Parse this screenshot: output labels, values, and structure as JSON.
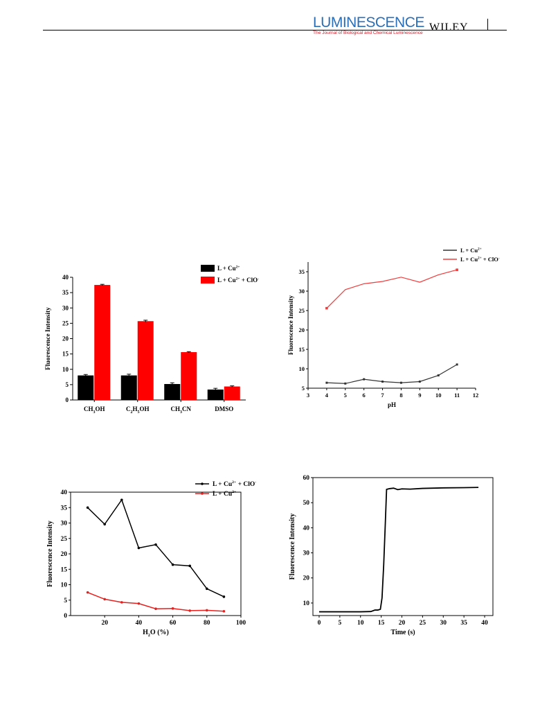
{
  "header": {
    "journal_name": "LUMINESCENCE",
    "journal_subtitle": "The Journal of Biological and Chemical Luminescence",
    "publisher": "WILEY",
    "colors": {
      "journal": "#2a6fb7",
      "subtitle": "#c41e2a"
    }
  },
  "chart_data": [
    {
      "type": "bar",
      "categories": [
        [
          "CH",
          "3",
          "OH"
        ],
        [
          "C",
          "2",
          "H",
          "5",
          "OH"
        ],
        [
          "CH",
          "3",
          "CN"
        ],
        [
          "DMSO"
        ]
      ],
      "series": [
        {
          "name": "L + Cu2+",
          "color": "#000000",
          "values": [
            8.0,
            8.0,
            5.2,
            3.4
          ],
          "errors": [
            0.3,
            0.4,
            0.4,
            0.4
          ]
        },
        {
          "name": "L + Cu2+ + ClO-",
          "color": "#ff0000",
          "values": [
            37.5,
            25.7,
            15.6,
            4.4
          ],
          "errors": [
            0.2,
            0.3,
            0.15,
            0.2
          ]
        }
      ],
      "xlabel": "",
      "ylabel": "Fluorescence Intensity",
      "ylim": [
        0,
        40
      ],
      "yticks": [
        0,
        5,
        10,
        15,
        20,
        25,
        30,
        35,
        40
      ],
      "legend_position": "top-right"
    },
    {
      "type": "line",
      "x": [
        4,
        5,
        6,
        7,
        8,
        9,
        10,
        11
      ],
      "series": [
        {
          "name": "L + Cu2+",
          "color": "#333333",
          "values": [
            6.4,
            6.2,
            7.3,
            6.7,
            6.4,
            6.7,
            8.3,
            11.1
          ]
        },
        {
          "name": "L + Cu2+ + ClO-",
          "color": "#f03c3c",
          "values": [
            25.6,
            30.4,
            31.9,
            32.5,
            33.6,
            32.3,
            34.2,
            35.5
          ]
        }
      ],
      "xlabel": "pH",
      "ylabel": "Fluorescence Intensity",
      "xlim": [
        3,
        12
      ],
      "ylim": [
        5,
        37.5
      ],
      "xticks": [
        3,
        4,
        5,
        6,
        7,
        8,
        9,
        10,
        11,
        12
      ],
      "yticks": [
        5,
        10,
        15,
        20,
        25,
        30,
        35
      ],
      "legend_position": "top-right"
    },
    {
      "type": "line",
      "x": [
        10,
        20,
        30,
        40,
        50,
        60,
        70,
        80,
        90
      ],
      "series": [
        {
          "name": "L + Cu2+ + ClO-",
          "color": "#000000",
          "values": [
            35,
            29.6,
            37.5,
            21.9,
            23,
            16.5,
            16.1,
            8.7,
            6.1
          ]
        },
        {
          "name": "L + Cu2+",
          "color": "#e8201e",
          "values": [
            7.5,
            5.3,
            4.3,
            3.9,
            2.2,
            2.3,
            1.6,
            1.7,
            1.4
          ]
        }
      ],
      "xlabel": "H2O (%)",
      "ylabel": "Fluorescence Intensity",
      "xlim": [
        0,
        100
      ],
      "ylim": [
        0,
        40
      ],
      "xticks": [
        20,
        40,
        60,
        80,
        100
      ],
      "yticks": [
        0,
        5,
        10,
        15,
        20,
        25,
        30,
        35,
        40
      ],
      "legend_position": "top-right"
    },
    {
      "type": "line",
      "x": [
        0,
        5,
        10,
        12.5,
        13.5,
        14.2,
        14.8,
        15.2,
        15.6,
        16,
        16.3,
        17,
        18,
        19,
        20,
        22,
        25,
        30,
        35,
        38.5
      ],
      "series": [
        {
          "name": "",
          "color": "#000000",
          "values": [
            6.5,
            6.5,
            6.5,
            6.6,
            7.2,
            7.2,
            7.5,
            12,
            25,
            42,
            55.3,
            55.6,
            55.8,
            55.2,
            55.5,
            55.4,
            55.7,
            55.9,
            56,
            56.1
          ]
        }
      ],
      "xlabel": "Time (s)",
      "ylabel": "Fluorescence Intensity",
      "xlim": [
        -1.5,
        42
      ],
      "ylim": [
        5,
        60
      ],
      "xticks": [
        0,
        5,
        10,
        15,
        20,
        25,
        30,
        35,
        40
      ],
      "yticks": [
        10,
        20,
        30,
        40,
        50,
        60
      ]
    }
  ]
}
